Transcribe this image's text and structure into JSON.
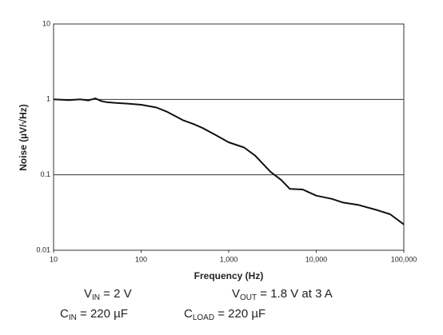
{
  "chart_data": {
    "type": "line",
    "xlabel": "Frequency (Hz)",
    "ylabel": "Noise (µV/√Hz)",
    "x": [
      10,
      15,
      20,
      25,
      30,
      35,
      40,
      50,
      70,
      100,
      150,
      200,
      300,
      400,
      500,
      700,
      1000,
      1500,
      2000,
      3000,
      4000,
      5000,
      7000,
      10000,
      15000,
      20000,
      30000,
      50000,
      70000,
      100000
    ],
    "values": [
      1.0,
      0.98,
      1.0,
      0.97,
      1.03,
      0.95,
      0.92,
      0.9,
      0.88,
      0.85,
      0.78,
      0.68,
      0.53,
      0.47,
      0.42,
      0.34,
      0.27,
      0.23,
      0.18,
      0.11,
      0.085,
      0.065,
      0.064,
      0.053,
      0.048,
      0.043,
      0.04,
      0.034,
      0.03,
      0.022
    ],
    "color": "#111111",
    "xscale": "log",
    "yscale": "log",
    "xlim": [
      10,
      100000
    ],
    "ylim": [
      0.01,
      10
    ],
    "xticks": [
      10,
      100,
      {
        "value": 1000,
        "label": "1,000"
      },
      {
        "value": 10000,
        "label": "10,000"
      },
      {
        "value": 100000,
        "label": "100,000"
      }
    ],
    "yticks": [
      0.01,
      0.1,
      1,
      10
    ],
    "grid": true,
    "annotations": [
      {
        "main": "V",
        "sub": "IN",
        "rest": " = 2 V"
      },
      {
        "main": "V",
        "sub": "OUT",
        "rest": " = 1.8 V at 3 A"
      },
      {
        "main": "C",
        "sub": "IN",
        "rest": " = 220 µF"
      },
      {
        "main": "C",
        "sub": "LOAD",
        "rest": " = 220 µF"
      }
    ]
  }
}
